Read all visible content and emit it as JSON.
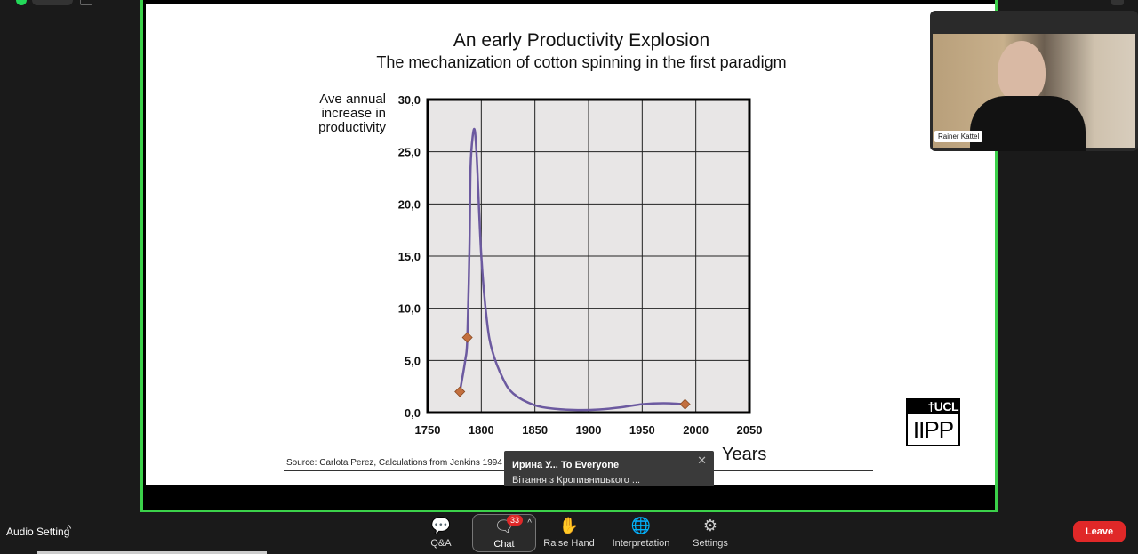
{
  "slide": {
    "title": "An early Productivity Explosion",
    "subtitle": "The mechanization of cotton spinning in the first paradigm",
    "y_label_lines": [
      "Ave annual",
      "increase in",
      "productivity"
    ],
    "x_unit": "Years",
    "source": "Source: Carlota Perez, Calculations from Jenkins 1994",
    "logo_top": "†UCL",
    "logo_bottom": "IIPP"
  },
  "chart_data": {
    "type": "line",
    "xlim": [
      1750,
      2050
    ],
    "ylim": [
      0,
      30
    ],
    "x_ticks": [
      "1750",
      "1800",
      "1850",
      "1900",
      "1950",
      "2000",
      "2050"
    ],
    "y_ticks": [
      "0,0",
      "5,0",
      "10,0",
      "15,0",
      "20,0",
      "25,0",
      "30,0"
    ],
    "grid": true,
    "series": [
      {
        "color": "#6c5aa0",
        "x": [
          1780,
          1785,
          1787,
          1789,
          1790,
          1792,
          1794,
          1796,
          1800,
          1805,
          1810,
          1820,
          1830,
          1850,
          1870,
          1890,
          1910,
          1930,
          1950,
          1970,
          1990
        ],
        "y": [
          2.0,
          5.0,
          7.2,
          16.0,
          23.5,
          26.5,
          27.0,
          24.0,
          15.0,
          9.0,
          6.0,
          3.3,
          1.8,
          0.7,
          0.35,
          0.25,
          0.3,
          0.5,
          0.8,
          0.9,
          0.8
        ]
      }
    ],
    "markers": {
      "color": "#c36f3e",
      "points": [
        [
          1780,
          2.0
        ],
        [
          1787,
          7.2
        ],
        [
          1990,
          0.8
        ]
      ]
    }
  },
  "participant": {
    "name": "Rainer Kattel"
  },
  "chat_toast": {
    "sender": "Ирина У... To Everyone",
    "message": "Вітання з Кропивницького ...",
    "close": "✕"
  },
  "toolbar": {
    "audio_setting": "Audio Setting",
    "audio_caret": "^",
    "qa": "Q&A",
    "chat": "Chat",
    "chat_badge": "33",
    "chat_caret": "^",
    "raise_hand": "Raise Hand",
    "interpretation": "Interpretation",
    "settings": "Settings",
    "leave": "Leave"
  }
}
